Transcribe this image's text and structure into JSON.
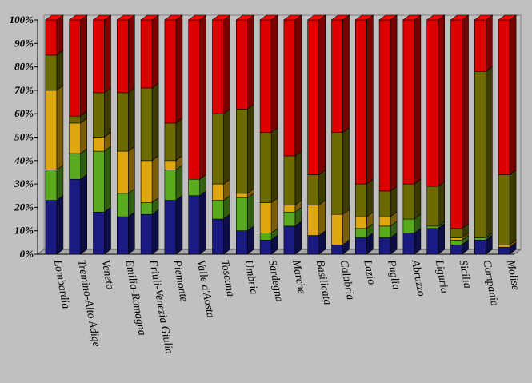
{
  "chart_data": {
    "type": "bar",
    "stacked": true,
    "percent": true,
    "title": "",
    "xlabel": "",
    "ylabel": "",
    "ylim": [
      0,
      100
    ],
    "y_ticks": [
      "0%",
      "10%",
      "20%",
      "30%",
      "40%",
      "50%",
      "60%",
      "70%",
      "80%",
      "90%",
      "100%"
    ],
    "grid": false,
    "legend": "none",
    "categories": [
      "Lombardia",
      "Tremino-Alto Adige",
      "Veneto",
      "Emilia-Romagna",
      "Friuli-Venezia Giulia",
      "Piemonte",
      "Valle d'Aosta",
      "Toscana",
      "Umbria",
      "Sardegna",
      "Marche",
      "Basilicata",
      "Calabria",
      "Lazio",
      "Puglia",
      "Abruzzo",
      "Liguria",
      "Sicilia",
      "Campania",
      "Molise"
    ],
    "series": [
      {
        "color": "#1a1a80",
        "values": [
          23,
          32,
          18,
          16,
          17,
          23,
          25,
          15,
          10,
          6,
          12,
          8,
          4,
          7,
          7,
          9,
          11,
          4,
          6,
          3
        ]
      },
      {
        "color": "#5aaa1e",
        "values": [
          13,
          11,
          26,
          10,
          5,
          13,
          7,
          8,
          14,
          3,
          6,
          0,
          0,
          4,
          5,
          6,
          1,
          2,
          1,
          0
        ]
      },
      {
        "color": "#e0a810",
        "values": [
          34,
          13,
          6,
          18,
          18,
          4,
          0,
          7,
          2,
          13,
          3,
          13,
          13,
          5,
          4,
          0,
          0,
          1,
          0,
          1
        ]
      },
      {
        "color": "#6b6b00",
        "values": [
          15,
          3,
          19,
          25,
          31,
          16,
          0,
          30,
          36,
          30,
          21,
          13,
          35,
          14,
          11,
          15,
          17,
          4,
          71,
          30
        ]
      },
      {
        "color": "#dd0000",
        "values": [
          15,
          41,
          31,
          31,
          29,
          44,
          68,
          40,
          38,
          48,
          58,
          66,
          48,
          70,
          73,
          70,
          71,
          89,
          22,
          66
        ]
      }
    ]
  }
}
